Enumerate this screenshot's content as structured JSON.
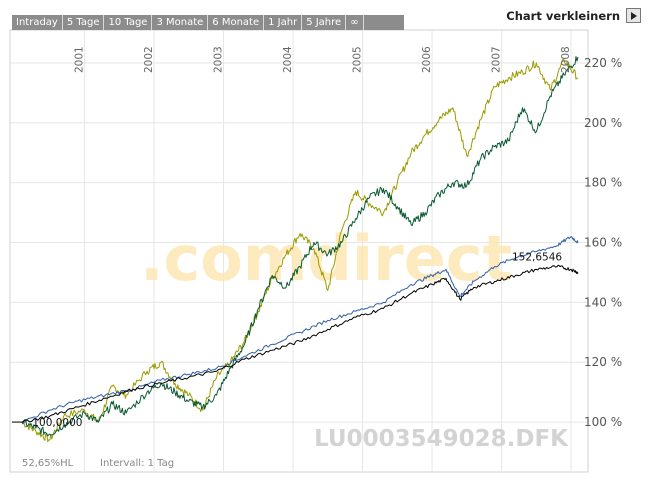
{
  "tabs": [
    "Intraday",
    "5 Tage",
    "10 Tage",
    "3 Monate",
    "6 Monate",
    "1 Jahr",
    "5 Jahre",
    "∞"
  ],
  "header": {
    "shrink_label": "Chart verkleinern"
  },
  "footer": {
    "left_text": "52,65%HL",
    "interval_text": "Intervall: 1 Tag"
  },
  "watermark": {
    "brand": ".comdirect",
    "symbol": "LU0003549028.DFK"
  },
  "colors": {
    "olive": "#9b9b00",
    "green": "#0a5a32",
    "blue": "#2f5fa8",
    "black": "#000000",
    "grid": "#e6e6e6",
    "frame": "#d0d0d0",
    "watermark_orange": "#fde7b3"
  },
  "chart_data": {
    "type": "line",
    "x_range": [
      2000.1,
      2008.1
    ],
    "ylim": [
      90,
      227
    ],
    "y_ticks": [
      100,
      120,
      140,
      160,
      180,
      200,
      220
    ],
    "y_tick_labels": [
      "100 %",
      "120 %",
      "140 %",
      "160 %",
      "180 %",
      "200 %",
      "220 %"
    ],
    "x_ticks": [
      2001,
      2002,
      2003,
      2004,
      2005,
      2006,
      2007,
      2008
    ],
    "x_tick_labels": [
      "2001",
      "2002",
      "2003",
      "2004",
      "2005",
      "2006",
      "2007",
      "2008"
    ],
    "grid": true,
    "annotations": [
      {
        "text": "100,0000",
        "x": 2000.22,
        "y": 100
      },
      {
        "text": "152,6546",
        "x": 2007.15,
        "y": 152.65
      }
    ],
    "series": [
      {
        "color": "#9b9b00",
        "x": [
          2000.1,
          2000.3,
          2000.5,
          2000.7,
          2001.0,
          2001.2,
          2001.4,
          2001.6,
          2001.9,
          2002.1,
          2002.3,
          2002.5,
          2002.7,
          2002.9,
          2003.1,
          2003.3,
          2003.5,
          2003.7,
          2003.9,
          2004.1,
          2004.3,
          2004.5,
          2004.7,
          2004.9,
          2005.1,
          2005.3,
          2005.5,
          2005.7,
          2005.9,
          2006.1,
          2006.3,
          2006.5,
          2006.7,
          2006.9,
          2007.1,
          2007.3,
          2007.5,
          2007.7,
          2007.9,
          2008.1
        ],
        "y": [
          100,
          97,
          94,
          102,
          104,
          100,
          112,
          109,
          117,
          120,
          113,
          109,
          104,
          115,
          120,
          127,
          137,
          148,
          156,
          163,
          158,
          144,
          164,
          177,
          173,
          170,
          180,
          190,
          196,
          201,
          205,
          189,
          201,
          212,
          215,
          217,
          220,
          211,
          221,
          215
        ]
      },
      {
        "color": "#0a5a32",
        "x": [
          2000.1,
          2000.3,
          2000.5,
          2000.7,
          2001.0,
          2001.2,
          2001.4,
          2001.6,
          2001.9,
          2002.1,
          2002.3,
          2002.5,
          2002.7,
          2002.9,
          2003.1,
          2003.3,
          2003.5,
          2003.7,
          2003.9,
          2004.1,
          2004.3,
          2004.5,
          2004.7,
          2004.9,
          2005.1,
          2005.3,
          2005.5,
          2005.7,
          2005.9,
          2006.1,
          2006.3,
          2006.5,
          2006.7,
          2006.9,
          2007.1,
          2007.3,
          2007.5,
          2007.7,
          2007.9,
          2008.1
        ],
        "y": [
          100,
          98,
          96,
          99,
          103,
          100,
          106,
          103,
          110,
          113,
          110,
          107,
          105,
          109,
          118,
          126,
          138,
          149,
          145,
          152,
          160,
          156,
          160,
          168,
          175,
          178,
          172,
          166,
          170,
          176,
          180,
          179,
          188,
          192,
          194,
          205,
          197,
          209,
          216,
          222
        ]
      },
      {
        "color": "#2f5fa8",
        "x": [
          2000.1,
          2000.5,
          2000.9,
          2001.3,
          2001.7,
          2002.1,
          2002.5,
          2002.9,
          2003.3,
          2003.7,
          2004.1,
          2004.5,
          2004.9,
          2005.3,
          2005.7,
          2006.0,
          2006.2,
          2006.4,
          2006.6,
          2006.9,
          2007.2,
          2007.5,
          2007.8,
          2008.0,
          2008.1
        ],
        "y": [
          100,
          104,
          107,
          109,
          111,
          114,
          116,
          118,
          122,
          126,
          130,
          134,
          137,
          140,
          146,
          149,
          151,
          142,
          147,
          152,
          155,
          157,
          159,
          162,
          160
        ]
      },
      {
        "color": "#000000",
        "x": [
          2000.1,
          2000.5,
          2000.9,
          2001.3,
          2001.7,
          2002.1,
          2002.5,
          2002.9,
          2003.3,
          2003.7,
          2004.1,
          2004.5,
          2004.9,
          2005.3,
          2005.7,
          2006.0,
          2006.2,
          2006.4,
          2006.6,
          2006.9,
          2007.2,
          2007.5,
          2007.8,
          2008.0,
          2008.1
        ],
        "y": [
          100,
          102,
          105,
          108,
          111,
          113,
          115,
          117,
          121,
          124,
          127,
          131,
          135,
          138,
          143,
          146,
          148,
          141,
          145,
          147,
          149,
          151,
          152,
          151,
          150
        ]
      }
    ]
  }
}
